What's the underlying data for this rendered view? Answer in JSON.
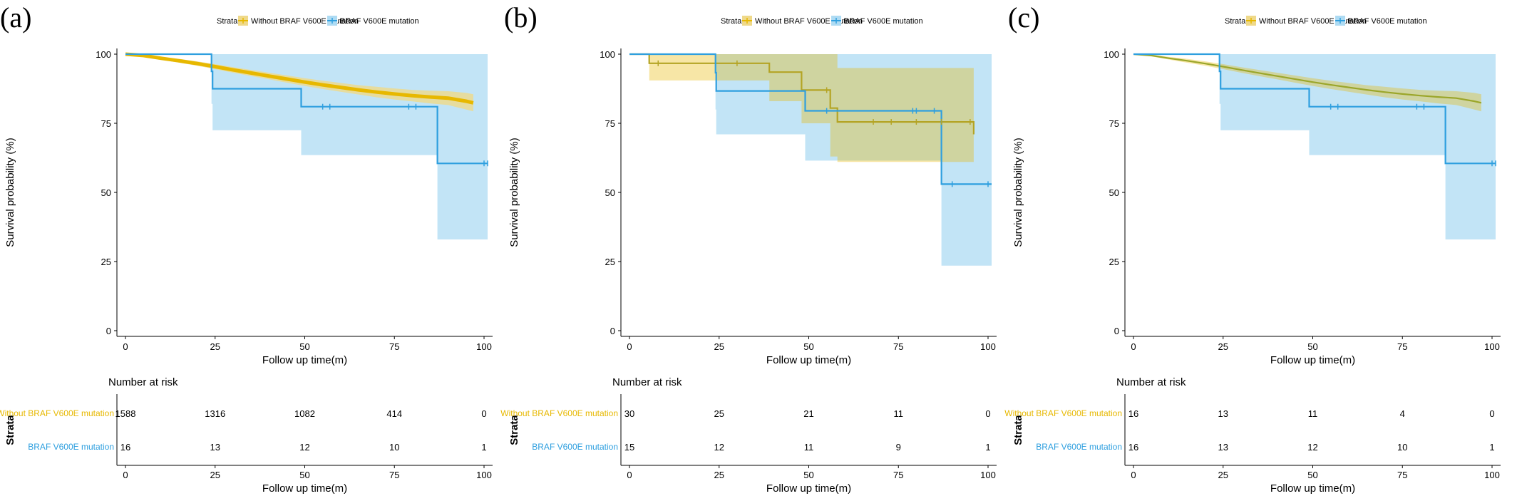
{
  "colors": {
    "without": "#E7B800",
    "braf": "#2E9FDF",
    "without_ci": "#EFD98A",
    "braf_ci": "#AEDBF3",
    "overlap_ci": "#A8CC9A"
  },
  "legend": {
    "title": "Strata",
    "items": [
      "Without BRAF V600E mutation",
      "BRAF V600E mutation"
    ]
  },
  "axes": {
    "xlabel": "Follow up time(m)",
    "ylabel": "Survival probability (%)",
    "x_ticks": [
      "0",
      "25",
      "50",
      "75",
      "100"
    ],
    "y_ticks": [
      "0",
      "25",
      "50",
      "75",
      "100"
    ]
  },
  "risk_table": {
    "title": "Number at risk",
    "strata_label": "Strata",
    "xlabel": "Follow up time(m)",
    "x_ticks": [
      "0",
      "25",
      "50",
      "75",
      "100"
    ]
  },
  "chart_data": [
    {
      "panel_label": "(a)",
      "type": "line",
      "xlim": [
        0,
        100
      ],
      "ylim": [
        0,
        100
      ],
      "series": [
        {
          "name": "Without BRAF V600E mutation",
          "x": [
            0,
            5,
            10,
            15,
            20,
            25,
            30,
            35,
            40,
            45,
            50,
            55,
            60,
            65,
            70,
            75,
            80,
            85,
            90,
            95,
            97
          ],
          "y": [
            100,
            99.5,
            98.5,
            97.6,
            96.6,
            95.5,
            94.3,
            93.2,
            92.1,
            91.0,
            89.9,
            88.9,
            88.0,
            87.1,
            86.3,
            85.6,
            85.0,
            84.5,
            84.1,
            83.0,
            82.4
          ],
          "ci_upper": [
            100,
            99.8,
            99.0,
            98.3,
            97.4,
            96.4,
            95.3,
            94.3,
            93.3,
            92.3,
            91.3,
            90.4,
            89.6,
            88.8,
            88.2,
            87.6,
            87.1,
            86.8,
            86.6,
            86.0,
            85.5
          ],
          "ci_lower": [
            100,
            99.2,
            98.0,
            96.9,
            95.8,
            94.6,
            93.3,
            92.1,
            90.9,
            89.7,
            88.5,
            87.4,
            86.4,
            85.4,
            84.4,
            83.6,
            82.9,
            82.2,
            81.6,
            80.0,
            79.3
          ]
        },
        {
          "name": "BRAF V600E mutation",
          "x": [
            0,
            24,
            24.3,
            49,
            87,
            101
          ],
          "y": [
            100,
            93.8,
            87.5,
            81.0,
            60.5,
            60.5
          ],
          "ci_upper": [
            100,
            100,
            100,
            100,
            100,
            100
          ],
          "ci_lower": [
            100,
            82,
            72.5,
            63.5,
            33,
            33
          ]
        }
      ],
      "risk": {
        "without": [
          "1588",
          "1316",
          "1082",
          "414",
          "0"
        ],
        "braf": [
          "16",
          "13",
          "12",
          "10",
          "1"
        ]
      }
    },
    {
      "panel_label": "(b)",
      "type": "line",
      "xlim": [
        0,
        100
      ],
      "ylim": [
        0,
        100
      ],
      "series": [
        {
          "name": "Without BRAF V600E mutation",
          "x": [
            0,
            5.5,
            24,
            39,
            48,
            56,
            58,
            96
          ],
          "y": [
            100,
            96.7,
            96.7,
            93.5,
            87.0,
            80.5,
            75.5,
            71.0
          ],
          "ci_upper": [
            100,
            100,
            100,
            100,
            100,
            100,
            95,
            92
          ],
          "ci_lower": [
            100,
            90.5,
            90.5,
            83,
            75,
            63,
            61,
            55.5
          ]
        },
        {
          "name": "BRAF V600E mutation",
          "x": [
            0,
            24,
            24.2,
            49,
            87,
            101
          ],
          "y": [
            100,
            93.3,
            86.7,
            79.5,
            53.0,
            53.0
          ],
          "ci_upper": [
            100,
            100,
            100,
            100,
            100,
            100
          ],
          "ci_lower": [
            100,
            80,
            71,
            61.5,
            23.5,
            23.5
          ]
        }
      ],
      "risk": {
        "without": [
          "30",
          "25",
          "21",
          "11",
          "0"
        ],
        "braf": [
          "15",
          "12",
          "11",
          "9",
          "1"
        ]
      }
    },
    {
      "panel_label": "(c)",
      "type": "line",
      "xlim": [
        0,
        100
      ],
      "ylim": [
        0,
        100
      ],
      "series": [
        {
          "name": "Without BRAF V600E mutation",
          "x": [
            0,
            5,
            10,
            15,
            20,
            25,
            30,
            35,
            40,
            45,
            50,
            55,
            60,
            65,
            70,
            75,
            80,
            85,
            90,
            95,
            97
          ],
          "y": [
            100,
            99.5,
            98.5,
            97.6,
            96.6,
            95.5,
            94.3,
            93.2,
            92.1,
            91.0,
            89.9,
            88.9,
            88.0,
            87.1,
            86.3,
            85.6,
            85.0,
            84.5,
            84.1,
            83.0,
            82.4
          ],
          "ci_upper": [
            100,
            99.8,
            99.0,
            98.3,
            97.4,
            96.4,
            95.3,
            94.3,
            93.3,
            92.3,
            91.3,
            90.4,
            89.6,
            88.8,
            88.2,
            87.6,
            87.1,
            86.8,
            86.6,
            86.0,
            85.5
          ],
          "ci_lower": [
            100,
            99.2,
            98.0,
            96.9,
            95.8,
            94.6,
            93.3,
            92.1,
            90.9,
            89.7,
            88.5,
            87.4,
            86.4,
            85.4,
            84.4,
            83.6,
            82.9,
            82.2,
            81.6,
            80.0,
            79.3
          ]
        },
        {
          "name": "BRAF V600E mutation",
          "x": [
            0,
            24,
            24.3,
            49,
            87,
            101
          ],
          "y": [
            100,
            93.8,
            87.5,
            81.0,
            60.5,
            60.5
          ],
          "ci_upper": [
            100,
            100,
            100,
            100,
            100,
            100
          ],
          "ci_lower": [
            100,
            82,
            72.5,
            63.5,
            33,
            33
          ]
        }
      ],
      "risk": {
        "without": [
          "16",
          "13",
          "11",
          "4",
          "0"
        ],
        "braf": [
          "16",
          "13",
          "12",
          "10",
          "1"
        ]
      }
    }
  ]
}
